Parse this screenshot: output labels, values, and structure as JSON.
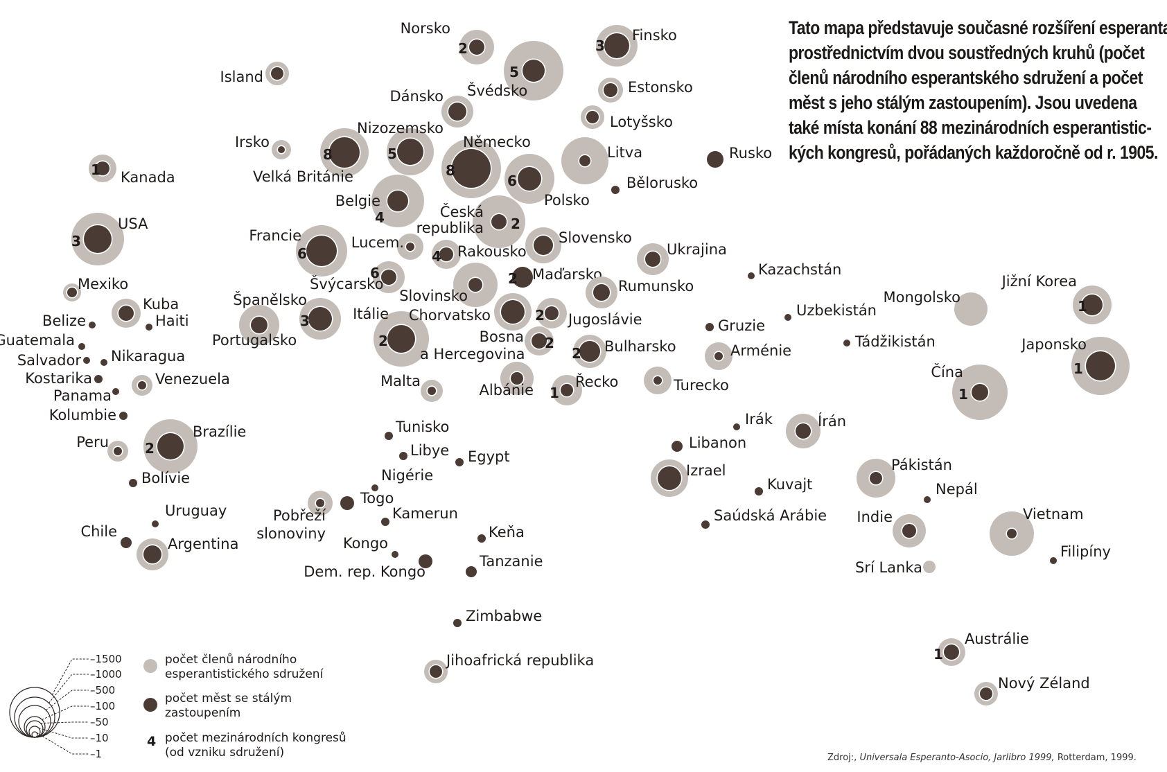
{
  "description": {
    "lines": [
      "Tato mapa představuje současné rozšíření esperanta",
      "prostřednictvím dvou soustředných kruhů (počet",
      "členů národního esperantského sdružení a počet",
      "měst s jeho stálým zastoupením). Jsou uvedena",
      "také místa konání 88 mezinárodních esperantistic-",
      "kých kongresů, pořádaných každoročně od r. 1905."
    ]
  },
  "source": {
    "prefix": "Zdroj:,",
    "italic": "Universala Esperanto-Asocio, Jarlibro 1999,",
    "suffix": "Rotterdam, 1999."
  },
  "legend": {
    "scale_values": [
      "1500",
      "1000",
      "500",
      "100",
      "50",
      "10",
      "1"
    ],
    "members_label": [
      "počet členů národního",
      "esperantistického sdružení"
    ],
    "cities_label": [
      "počet měst se stálým",
      "zastoupením"
    ],
    "congress_symbol": "4",
    "congress_label": [
      "počet mezinárodních kongresů",
      "(od vzniku sdružení)"
    ]
  },
  "colors": {
    "outer_circle": "#c4bcb6",
    "inner_circle": "#4a3b35",
    "ring": "#ffffff",
    "text": "#1e1b1a"
  },
  "countries": [
    {
      "name": "Norsko",
      "congresses": "2",
      "outer": 25,
      "inner": 11
    },
    {
      "name": "Finsko",
      "congresses": "3",
      "outer": 30,
      "inner": 18
    },
    {
      "name": "Island",
      "congresses": "",
      "outer": 17,
      "inner": 9
    },
    {
      "name": "Švédsko",
      "congresses": "5",
      "outer": 43,
      "inner": 16
    },
    {
      "name": "Dánsko",
      "congresses": "",
      "outer": 23,
      "inner": 13
    },
    {
      "name": "Estonsko",
      "congresses": "",
      "outer": 18,
      "inner": 10
    },
    {
      "name": "Lotyšsko",
      "congresses": "",
      "outer": 17,
      "inner": 9
    },
    {
      "name": "Nizozemsko",
      "congresses": "5",
      "outer": 34,
      "inner": 19
    },
    {
      "name": "Irsko",
      "congresses": "",
      "outer": 14,
      "inner": 5
    },
    {
      "name": "Velká Británie",
      "congresses": "8",
      "outer": 35,
      "inner": 22
    },
    {
      "name": "Německo",
      "congresses": "8",
      "outer": 43,
      "inner": 28
    },
    {
      "name": "Litva",
      "congresses": "",
      "outer": 34,
      "inner": 8
    },
    {
      "name": "Rusko",
      "congresses": "",
      "outer": 0,
      "inner": 12
    },
    {
      "name": "Kanada",
      "congresses": "1",
      "outer": 20,
      "inner": 10
    },
    {
      "name": "Polsko",
      "congresses": "6",
      "outer": 36,
      "inner": 17
    },
    {
      "name": "Bělorusko",
      "congresses": "",
      "outer": 0,
      "inner": 6
    },
    {
      "name": "Belgie",
      "congresses": "4",
      "outer": 38,
      "inner": 15
    },
    {
      "name": "Česká republika",
      "congresses": "2",
      "outer": 38,
      "inner": 11
    },
    {
      "name": "USA",
      "congresses": "3",
      "outer": 38,
      "inner": 20
    },
    {
      "name": "Francie",
      "congresses": "6",
      "outer": 37,
      "inner": 22
    },
    {
      "name": "Lucem.",
      "congresses": "",
      "outer": 19,
      "inner": 6
    },
    {
      "name": "Rakousko",
      "congresses": "4",
      "outer": 21,
      "inner": 10
    },
    {
      "name": "Slovensko",
      "congresses": "",
      "outer": 26,
      "inner": 14
    },
    {
      "name": "Ukrajina",
      "congresses": "",
      "outer": 23,
      "inner": 11
    },
    {
      "name": "Švýcarsko",
      "congresses": "6",
      "outer": 23,
      "inner": 11
    },
    {
      "name": "Slovinsko",
      "congresses": "",
      "outer": 32,
      "inner": 10
    },
    {
      "name": "Maďarsko",
      "congresses": "2",
      "outer": 0,
      "inner": 15
    },
    {
      "name": "Rumunsko",
      "congresses": "",
      "outer": 23,
      "inner": 12
    },
    {
      "name": "Mexiko",
      "congresses": "",
      "outer": 13,
      "inner": 7
    },
    {
      "name": "Kuba",
      "congresses": "",
      "outer": 21,
      "inner": 11
    },
    {
      "name": "Haiti",
      "congresses": "",
      "outer": 0,
      "inner": 5
    },
    {
      "name": "Španělsko",
      "congresses": "3",
      "outer": 30,
      "inner": 17
    },
    {
      "name": "Portugalsko",
      "congresses": "",
      "outer": 29,
      "inner": 12
    },
    {
      "name": "Itálie",
      "congresses": "2",
      "outer": 40,
      "inner": 20
    },
    {
      "name": "Chorvatsko",
      "congresses": "",
      "outer": 27,
      "inner": 17
    },
    {
      "name": "Jugoslávie",
      "congresses": "2",
      "outer": 22,
      "inner": 10
    },
    {
      "name": "Belize",
      "congresses": "",
      "outer": 0,
      "inner": 5
    },
    {
      "name": "Guatemala",
      "congresses": "",
      "outer": 0,
      "inner": 5
    },
    {
      "name": "Salvador",
      "congresses": "",
      "outer": 0,
      "inner": 5
    },
    {
      "name": "Nikaragua",
      "congresses": "",
      "outer": 0,
      "inner": 5
    },
    {
      "name": "Kostarika",
      "congresses": "",
      "outer": 0,
      "inner": 6
    },
    {
      "name": "Panama",
      "congresses": "",
      "outer": 0,
      "inner": 5
    },
    {
      "name": "Venezuela",
      "congresses": "",
      "outer": 15,
      "inner": 6
    },
    {
      "name": "Kolumbie",
      "congresses": "",
      "outer": 0,
      "inner": 6
    },
    {
      "name": "Bosna a Hercegovina",
      "congresses": "2",
      "outer": 21,
      "inner": 11
    },
    {
      "name": "Bulharsko",
      "congresses": "2",
      "outer": 24,
      "inner": 15
    },
    {
      "name": "Gruzie",
      "congresses": "",
      "outer": 0,
      "inner": 6
    },
    {
      "name": "Arménie",
      "congresses": "",
      "outer": 20,
      "inner": 6
    },
    {
      "name": "Kazachstán",
      "congresses": "",
      "outer": 0,
      "inner": 5
    },
    {
      "name": "Uzbekistán",
      "congresses": "",
      "outer": 0,
      "inner": 5
    },
    {
      "name": "Tádžikistán",
      "congresses": "",
      "outer": 0,
      "inner": 5
    },
    {
      "name": "Mongolsko",
      "congresses": "",
      "outer": 24,
      "inner": 0
    },
    {
      "name": "Jižní Korea",
      "congresses": "1",
      "outer": 28,
      "inner": 15
    },
    {
      "name": "Japonsko",
      "congresses": "1",
      "outer": 42,
      "inner": 21
    },
    {
      "name": "Čína",
      "congresses": "1",
      "outer": 40,
      "inner": 12
    },
    {
      "name": "Malta",
      "congresses": "",
      "outer": 16,
      "inner": 6
    },
    {
      "name": "Albánie",
      "congresses": "",
      "outer": 24,
      "inner": 9
    },
    {
      "name": "Řecko",
      "congresses": "1",
      "outer": 22,
      "inner": 9
    },
    {
      "name": "Turecko",
      "congresses": "",
      "outer": 20,
      "inner": 6
    },
    {
      "name": "Brazílie",
      "congresses": "2",
      "outer": 39,
      "inner": 19
    },
    {
      "name": "Peru",
      "congresses": "",
      "outer": 15,
      "inner": 6
    },
    {
      "name": "Bolívie",
      "congresses": "",
      "outer": 0,
      "inner": 6
    },
    {
      "name": "Tunisko",
      "congresses": "",
      "outer": 0,
      "inner": 6
    },
    {
      "name": "Libye",
      "congresses": "",
      "outer": 0,
      "inner": 6
    },
    {
      "name": "Egypt",
      "congresses": "",
      "outer": 0,
      "inner": 6
    },
    {
      "name": "Nigérie",
      "congresses": "",
      "outer": 0,
      "inner": 5
    },
    {
      "name": "Irák",
      "congresses": "",
      "outer": 0,
      "inner": 5
    },
    {
      "name": "Írán",
      "congresses": "",
      "outer": 25,
      "inner": 11
    },
    {
      "name": "Libanon",
      "congresses": "",
      "outer": 0,
      "inner": 8
    },
    {
      "name": "Izrael",
      "congresses": "",
      "outer": 27,
      "inner": 17
    },
    {
      "name": "Kuvajt",
      "congresses": "",
      "outer": 0,
      "inner": 6
    },
    {
      "name": "Pákistán",
      "congresses": "",
      "outer": 28,
      "inner": 9
    },
    {
      "name": "Nepál",
      "congresses": "",
      "outer": 0,
      "inner": 5
    },
    {
      "name": "Togo",
      "congresses": "",
      "outer": 0,
      "inner": 10
    },
    {
      "name": "Pobřeží slonoviny",
      "congresses": "",
      "outer": 18,
      "inner": 6
    },
    {
      "name": "Kamerun",
      "congresses": "",
      "outer": 0,
      "inner": 6
    },
    {
      "name": "Saúdská Arábie",
      "congresses": "",
      "outer": 0,
      "inner": 6
    },
    {
      "name": "Indie",
      "congresses": "",
      "outer": 24,
      "inner": 10
    },
    {
      "name": "Vietnam",
      "congresses": "",
      "outer": 32,
      "inner": 7
    },
    {
      "name": "Uruguay",
      "congresses": "",
      "outer": 0,
      "inner": 5
    },
    {
      "name": "Chile",
      "congresses": "",
      "outer": 0,
      "inner": 8
    },
    {
      "name": "Argentina",
      "congresses": "",
      "outer": 23,
      "inner": 13
    },
    {
      "name": "Keňa",
      "congresses": "",
      "outer": 0,
      "inner": 6
    },
    {
      "name": "Kongo",
      "congresses": "",
      "outer": 0,
      "inner": 5
    },
    {
      "name": "Dem. rep. Kongo",
      "congresses": "",
      "outer": 0,
      "inner": 10
    },
    {
      "name": "Tanzanie",
      "congresses": "",
      "outer": 0,
      "inner": 8
    },
    {
      "name": "Filipíny",
      "congresses": "",
      "outer": 0,
      "inner": 5
    },
    {
      "name": "Srí Lanka",
      "congresses": "",
      "outer": 9,
      "inner": 0
    },
    {
      "name": "Zimbabwe",
      "congresses": "",
      "outer": 0,
      "inner": 6
    },
    {
      "name": "Jihoafrická republika",
      "congresses": "",
      "outer": 17,
      "inner": 9
    },
    {
      "name": "Austrálie",
      "congresses": "1",
      "outer": 20,
      "inner": 11
    },
    {
      "name": "Nový Zéland",
      "congresses": "",
      "outer": 17,
      "inner": 9
    }
  ]
}
